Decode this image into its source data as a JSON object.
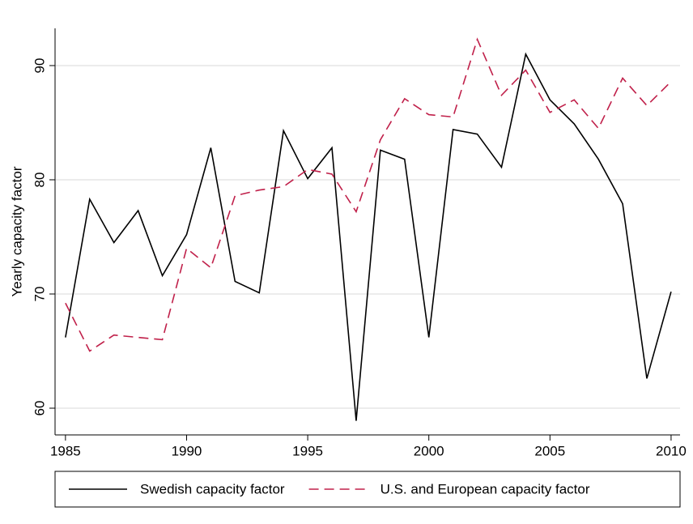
{
  "chart_data": {
    "type": "line",
    "ylabel": "Yearly capacity factor",
    "x": [
      1985,
      1986,
      1987,
      1988,
      1989,
      1990,
      1991,
      1992,
      1993,
      1994,
      1995,
      1996,
      1997,
      1998,
      1999,
      2000,
      2001,
      2002,
      2003,
      2004,
      2005,
      2006,
      2007,
      2008,
      2009,
      2010
    ],
    "series": [
      {
        "name": "Swedish capacity factor",
        "color": "#000000",
        "dash": "solid",
        "values": [
          66.2,
          78.3,
          74.5,
          77.3,
          71.6,
          75.2,
          82.8,
          71.1,
          70.1,
          84.3,
          80.1,
          82.8,
          58.9,
          82.6,
          81.8,
          66.2,
          84.4,
          84.0,
          81.1,
          91.0,
          87.0,
          84.9,
          81.8,
          77.9,
          62.6,
          70.2
        ]
      },
      {
        "name": "U.S. and European capacity factor",
        "color": "#c0204a",
        "dash": "dashed",
        "values": [
          69.2,
          65.0,
          66.4,
          66.2,
          66.0,
          74.0,
          72.3,
          78.6,
          79.1,
          79.4,
          80.9,
          80.5,
          77.2,
          83.5,
          87.1,
          85.7,
          85.5,
          92.3,
          87.4,
          89.6,
          85.9,
          87.0,
          84.5,
          88.9,
          86.5,
          88.6
        ]
      }
    ],
    "xlim": [
      1984.57,
      2010.37
    ],
    "xticks": [
      1985,
      1990,
      1995,
      2000,
      2005,
      2010
    ],
    "ylim": [
      57.66,
      93.26
    ],
    "yticks": [
      60,
      70,
      80,
      90
    ],
    "grid": true,
    "legend": "bottom"
  }
}
